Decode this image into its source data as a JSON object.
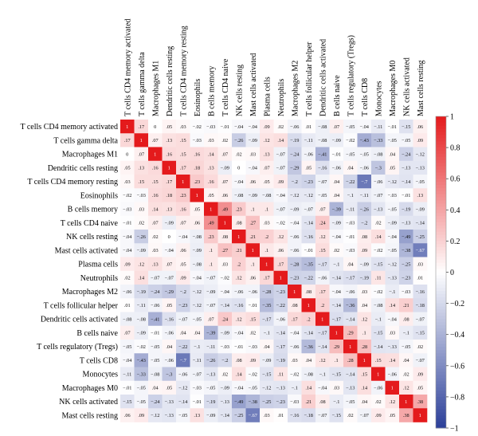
{
  "chart_data": {
    "type": "heatmap",
    "title": "",
    "labels": [
      "T cells CD4 memory activated",
      "T cells gamma delta",
      "Macrophages M1",
      "Dendritic cells resting",
      "T cells CD4 memory resting",
      "Eosinophils",
      "B cells memory",
      "T cells CD4 naive",
      "NK cells resting",
      "Mast cells activated",
      "Plasma cells",
      "Neutrophils",
      "Macrophages M2",
      "T cells follicular helper",
      "Dendritic cells activated",
      "B cells naive",
      "T cells regulatory (Tregs)",
      "T cells CD8",
      "Monocytes",
      "Macrophages M0",
      "NK cells activated",
      "Mast cells resting"
    ],
    "matrix": [
      [
        1,
        0.17,
        0,
        0.05,
        0.03,
        -0.02,
        -0.03,
        -0.01,
        -0.04,
        -0.04,
        0.09,
        0.02,
        -0.06,
        0.01,
        -0.08,
        0.07,
        -0.05,
        -0.04,
        -0.11,
        -0.01,
        -0.15,
        0.06
      ],
      [
        0.17,
        1,
        0.07,
        0.13,
        0.15,
        -0.03,
        0.03,
        0.02,
        -0.26,
        -0.09,
        0.12,
        0.14,
        -0.19,
        -0.11,
        -0.08,
        -0.09,
        -0.02,
        -0.43,
        -0.33,
        -0.05,
        -0.05,
        0.09
      ],
      [
        0,
        0.07,
        1,
        0.16,
        0.15,
        0.16,
        0.14,
        0.07,
        0.02,
        0.03,
        0.13,
        -0.07,
        -0.24,
        -0.06,
        -0.41,
        -0.01,
        -0.05,
        -0.05,
        -0.08,
        0.04,
        -0.24,
        -0.12
      ],
      [
        0.05,
        0.13,
        0.16,
        1,
        0.17,
        0.18,
        0.13,
        -0.09,
        0,
        -0.04,
        0.07,
        -0.07,
        -0.29,
        0.05,
        -0.16,
        -0.06,
        0.04,
        -0.06,
        -0.3,
        0.05,
        -0.13,
        -0.13
      ],
      [
        0.03,
        0.15,
        0.15,
        0.17,
        1,
        0.23,
        0.16,
        0.07,
        -0.04,
        0.06,
        0.05,
        0.09,
        -0.2,
        -0.23,
        -0.07,
        0.04,
        -0.22,
        -0.7,
        -0.06,
        -0.12,
        -0.14,
        -0.05
      ],
      [
        -0.02,
        -0.03,
        0.16,
        0.18,
        0.23,
        1,
        0.05,
        0.06,
        -0.08,
        -0.09,
        -0.08,
        -0.04,
        -0.12,
        -0.12,
        -0.05,
        0.04,
        -0.1,
        -0.11,
        -0.07,
        -0.03,
        -0.01,
        0.13
      ],
      [
        -0.03,
        0.03,
        0.14,
        0.13,
        0.16,
        0.05,
        1,
        0.49,
        0.23,
        0.1,
        0.1,
        -0.07,
        -0.09,
        -0.07,
        0.07,
        -0.39,
        -0.11,
        -0.26,
        -0.13,
        -0.05,
        -0.19,
        -0.09
      ],
      [
        -0.01,
        0.02,
        0.07,
        -0.09,
        0.07,
        0.06,
        0.49,
        1,
        0.08,
        0.27,
        0.03,
        -0.02,
        -0.04,
        -0.14,
        0.24,
        -0.09,
        -0.03,
        -0.2,
        0.02,
        -0.09,
        -0.13,
        -0.14
      ],
      [
        -0.04,
        -0.26,
        0.02,
        0,
        -0.04,
        -0.08,
        0.23,
        0.08,
        1,
        0.21,
        0.2,
        0.12,
        -0.06,
        -0.16,
        0.12,
        -0.04,
        -0.01,
        0.08,
        0.14,
        -0.04,
        -0.49,
        -0.25
      ],
      [
        -0.04,
        -0.09,
        0.03,
        -0.04,
        0.06,
        -0.09,
        0.1,
        0.27,
        0.21,
        1,
        0.1,
        0.06,
        -0.06,
        -0.01,
        0.15,
        0.02,
        -0.03,
        0.09,
        -0.02,
        -0.05,
        -0.38,
        -0.67
      ],
      [
        0.09,
        0.12,
        0.13,
        0.07,
        0.05,
        -0.08,
        0.1,
        0.03,
        0.2,
        0.1,
        1,
        0.17,
        -0.28,
        -0.35,
        -0.17,
        -0.1,
        0.04,
        -0.09,
        -0.15,
        -0.12,
        -0.25,
        0.03
      ],
      [
        0.02,
        0.14,
        -0.07,
        -0.07,
        0.09,
        -0.04,
        -0.07,
        -0.02,
        0.12,
        0.06,
        0.17,
        1,
        -0.23,
        -0.22,
        -0.06,
        -0.14,
        -0.17,
        -0.19,
        0.11,
        -0.13,
        -0.23,
        0.01
      ],
      [
        -0.06,
        -0.19,
        -0.24,
        -0.29,
        -0.2,
        -0.12,
        -0.09,
        -0.04,
        -0.06,
        -0.06,
        -0.28,
        -0.23,
        1,
        0.08,
        0.17,
        -0.04,
        -0.06,
        0.03,
        -0.02,
        -0.1,
        -0.03,
        -0.16
      ],
      [
        0.01,
        -0.11,
        -0.06,
        0.05,
        -0.23,
        -0.12,
        -0.07,
        -0.14,
        -0.16,
        -0.01,
        -0.35,
        -0.22,
        0.08,
        1,
        0.2,
        -0.14,
        -0.36,
        0.04,
        -0.08,
        0.14,
        0.21,
        -0.18
      ],
      [
        -0.08,
        -0.08,
        -0.41,
        -0.16,
        -0.07,
        -0.05,
        0.07,
        0.24,
        0.12,
        0.15,
        -0.17,
        -0.06,
        0.17,
        0.2,
        1,
        -0.17,
        -0.14,
        0.12,
        -0.1,
        -0.04,
        0.08,
        -0.07
      ],
      [
        0.07,
        -0.09,
        -0.01,
        -0.06,
        0.04,
        0.04,
        -0.39,
        -0.09,
        -0.04,
        0.02,
        -0.1,
        -0.14,
        -0.04,
        -0.14,
        -0.17,
        1,
        0.29,
        0.1,
        -0.15,
        0.03,
        -0.1,
        -0.15
      ],
      [
        -0.05,
        -0.02,
        -0.05,
        0.04,
        -0.22,
        -0.1,
        -0.11,
        -0.03,
        -0.01,
        -0.03,
        0.04,
        -0.17,
        -0.06,
        -0.36,
        -0.14,
        0.29,
        1,
        0.28,
        -0.14,
        -0.13,
        -0.05,
        0.02
      ],
      [
        -0.04,
        -0.43,
        -0.05,
        -0.06,
        -0.7,
        -0.11,
        -0.26,
        -0.2,
        0.08,
        0.09,
        -0.09,
        -0.19,
        0.03,
        0.04,
        0.12,
        0.1,
        0.28,
        1,
        0.15,
        0.14,
        0.04,
        -0.07
      ],
      [
        -0.11,
        -0.33,
        -0.08,
        -0.3,
        -0.06,
        -0.07,
        -0.13,
        0.02,
        0.14,
        -0.02,
        -0.15,
        0.11,
        -0.02,
        -0.08,
        -0.1,
        -0.15,
        -0.14,
        0.15,
        1,
        -0.06,
        0.02,
        0.09
      ],
      [
        -0.01,
        -0.05,
        0.04,
        0.05,
        -0.12,
        -0.03,
        -0.05,
        -0.09,
        -0.04,
        -0.05,
        -0.12,
        -0.13,
        -0.1,
        0.14,
        -0.04,
        0.03,
        -0.13,
        0.14,
        -0.06,
        1,
        0.12,
        0.05
      ],
      [
        -0.15,
        -0.05,
        -0.24,
        -0.13,
        -0.14,
        -0.01,
        -0.19,
        -0.13,
        -0.49,
        -0.38,
        -0.25,
        -0.23,
        -0.03,
        0.21,
        0.08,
        -0.1,
        -0.05,
        0.04,
        0.02,
        0.12,
        1,
        0.38
      ],
      [
        0.06,
        0.09,
        -0.12,
        -0.13,
        -0.05,
        0.13,
        -0.09,
        -0.14,
        -0.25,
        -0.67,
        0.03,
        0.01,
        -0.16,
        -0.18,
        -0.07,
        -0.15,
        0.02,
        -0.07,
        0.09,
        0.05,
        0.38,
        1
      ]
    ],
    "colorbar": {
      "range": [
        -1,
        1
      ],
      "ticks": [
        "1",
        "0.8",
        "0.6",
        "0.4",
        "0.2",
        "0",
        "−0.2",
        "−0.4",
        "−0.6",
        "−0.8",
        "−1"
      ],
      "positive_color": "#e41a1c",
      "neutral_color": "#ffffff",
      "negative_color": "#2b3f99"
    },
    "grid": false,
    "legend": "colorbar-right"
  }
}
